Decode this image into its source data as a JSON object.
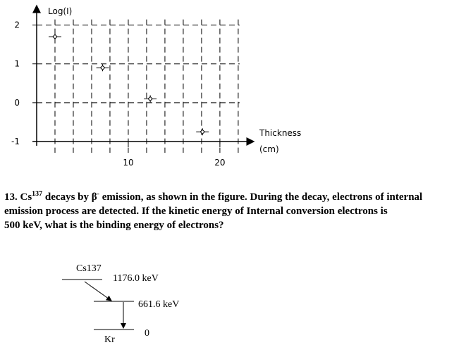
{
  "chart_data": {
    "type": "scatter",
    "ylabel": "Log(I)",
    "xlabel": [
      "Thickness",
      "(cm)"
    ],
    "x": [
      2,
      7.2,
      12.4,
      18.1
    ],
    "values": [
      1.7,
      0.9,
      0.1,
      -0.75
    ],
    "xlim": [
      0,
      23.7
    ],
    "ylim": [
      -1,
      2.5
    ],
    "xticks": [
      10,
      20
    ],
    "yticks": [
      2,
      1,
      0,
      -1
    ],
    "grid": true,
    "color": "#000000"
  },
  "question": {
    "line1": [
      "13. Cs",
      "137",
      " decays by β",
      "-",
      " emission, as shown in the figure. During the decay, electrons of internal"
    ],
    "line2": "emission process are detected. If the kinetic energy of Internal conversion electrons is",
    "line3": "500 keV, what is the binding energy of electrons?"
  },
  "diagram": {
    "parent": "Cs137",
    "level1": "1176.0 keV",
    "level2": "661.6 keV",
    "level3": "0",
    "daughter": "Kr"
  }
}
